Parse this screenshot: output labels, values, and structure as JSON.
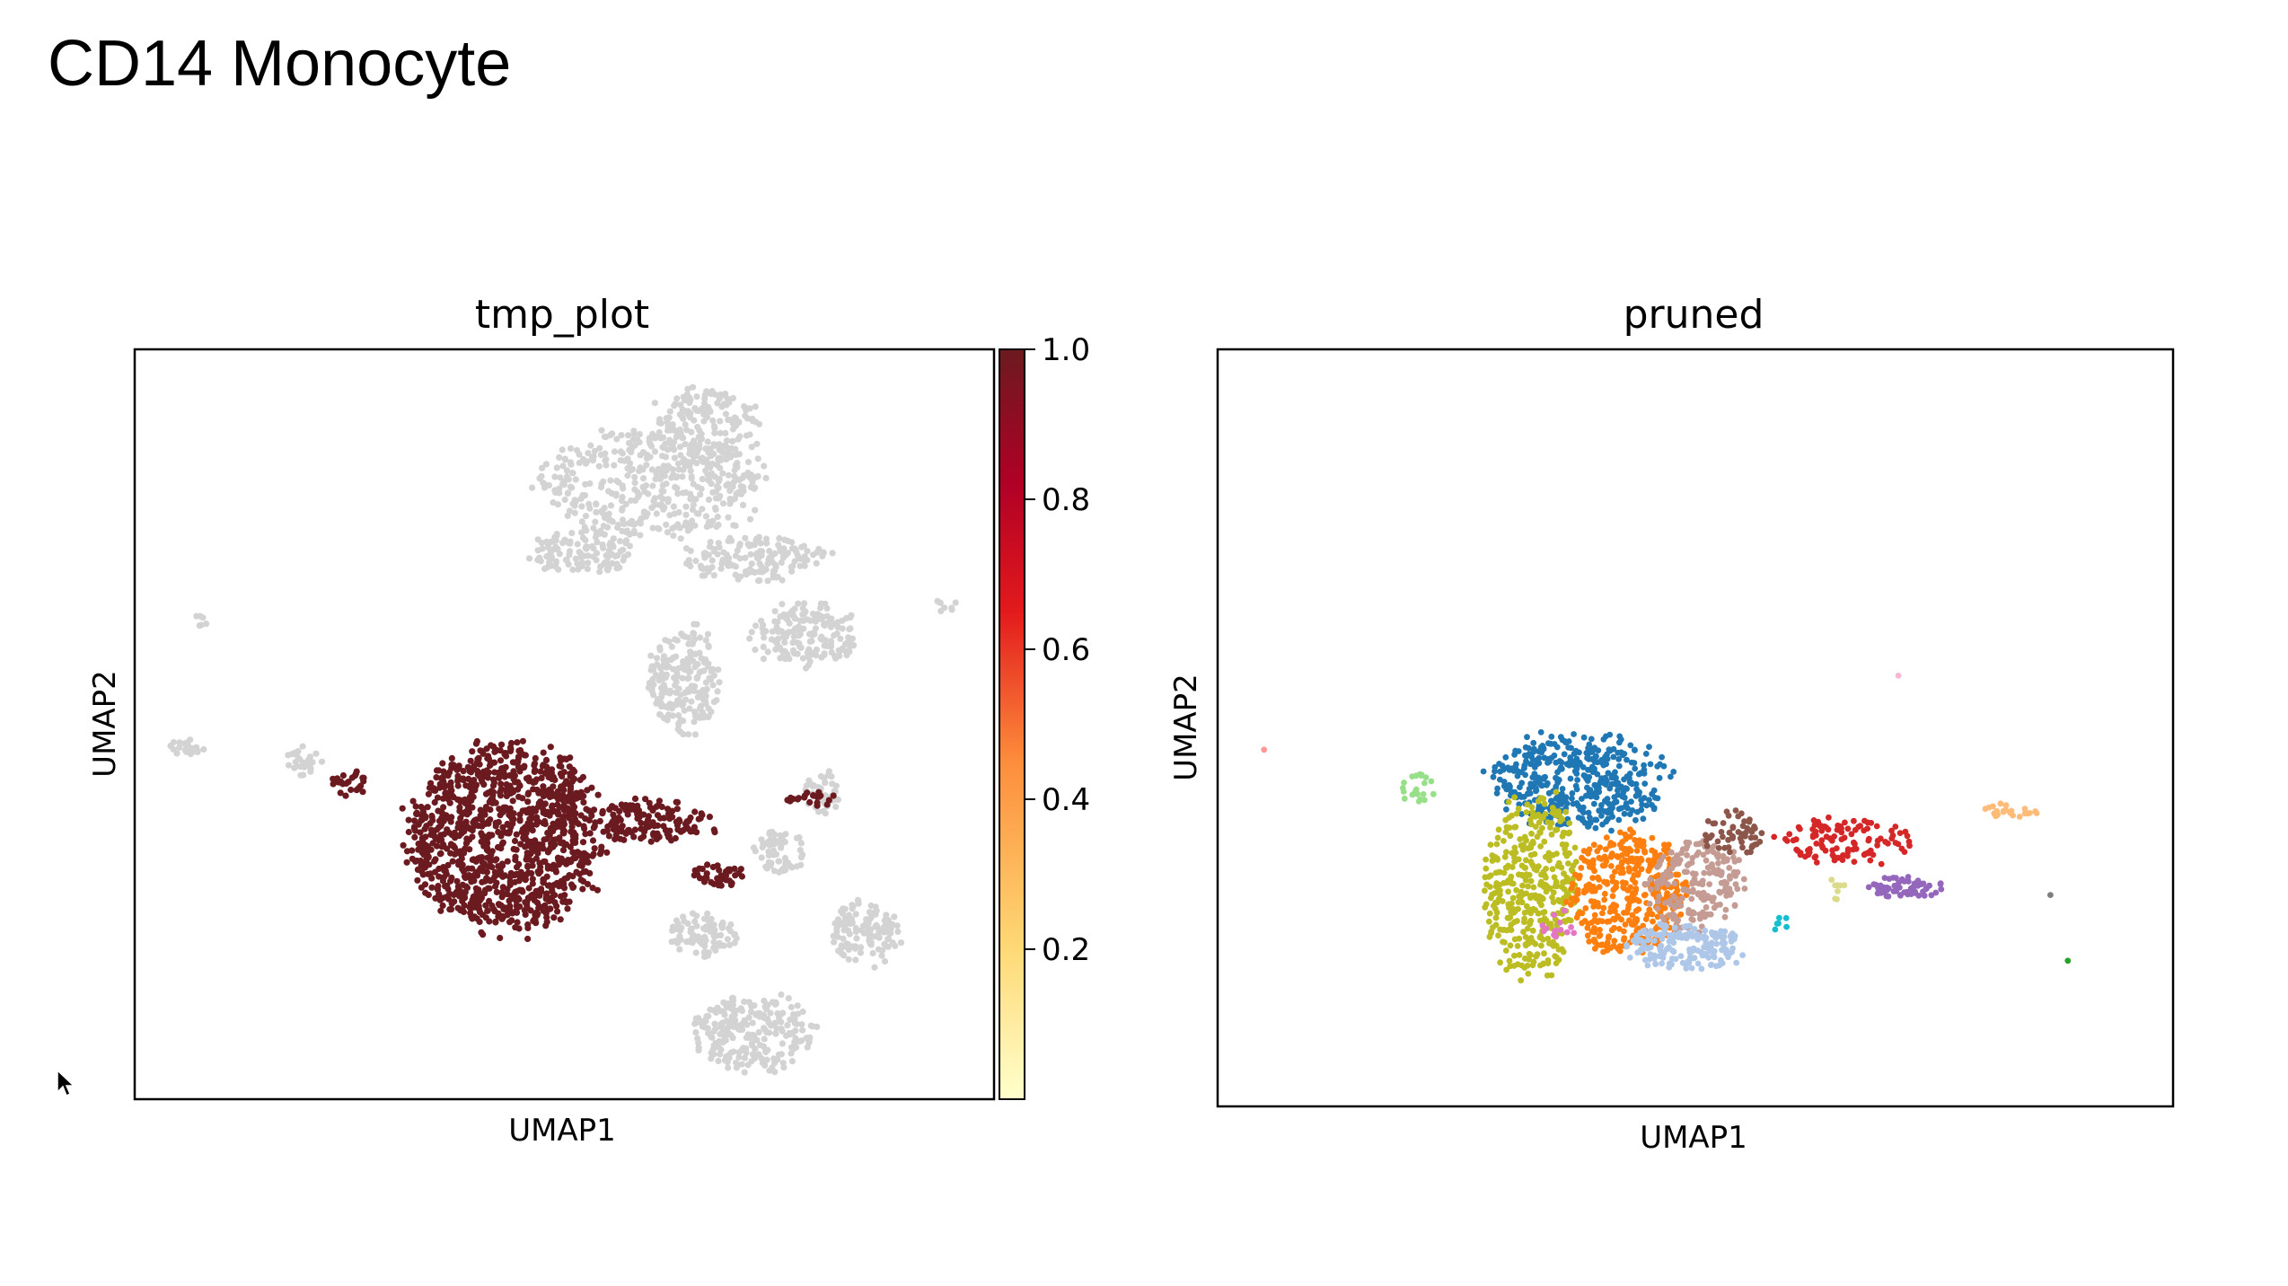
{
  "slide": {
    "title": "CD14 Monocyte"
  },
  "chart_data": [
    {
      "type": "scatter",
      "title": "tmp_plot",
      "xlabel": "UMAP1",
      "ylabel": "UMAP2",
      "xlim": [
        0,
        100
      ],
      "ylim": [
        0,
        100
      ],
      "colorbar": {
        "ticks": [
          0.2,
          0.4,
          0.6,
          0.8,
          1.0
        ],
        "tick_labels": [
          "0.2",
          "0.4",
          "0.6",
          "0.8",
          "1.0"
        ],
        "range": [
          0,
          1
        ],
        "colormap": [
          "#ffffcc",
          "#fed976",
          "#fd8d3c",
          "#e31a1c",
          "#b10026",
          "#6b1a1f"
        ]
      },
      "null_color": "#d3d3d3",
      "regions": [
        {
          "cx": 67,
          "cy": 90,
          "rx": 6,
          "ry": 5,
          "n": 160,
          "value": null
        },
        {
          "cx": 60,
          "cy": 82,
          "rx": 13,
          "ry": 7,
          "n": 420,
          "value": null
        },
        {
          "cx": 52,
          "cy": 73,
          "rx": 6,
          "ry": 3,
          "n": 120,
          "value": null
        },
        {
          "cx": 72,
          "cy": 72,
          "rx": 8,
          "ry": 3,
          "n": 150,
          "value": null
        },
        {
          "cx": 78,
          "cy": 62,
          "rx": 6,
          "ry": 4,
          "n": 170,
          "value": null
        },
        {
          "cx": 64,
          "cy": 56,
          "rx": 4,
          "ry": 7,
          "n": 200,
          "value": null
        },
        {
          "cx": 80,
          "cy": 41,
          "rx": 2,
          "ry": 3,
          "n": 40,
          "value": null
        },
        {
          "cx": 75,
          "cy": 33,
          "rx": 3,
          "ry": 3,
          "n": 60,
          "value": null
        },
        {
          "cx": 85,
          "cy": 22,
          "rx": 4,
          "ry": 4,
          "n": 120,
          "value": null
        },
        {
          "cx": 66,
          "cy": 22,
          "rx": 4,
          "ry": 3,
          "n": 90,
          "value": null
        },
        {
          "cx": 72,
          "cy": 9,
          "rx": 7,
          "ry": 5,
          "n": 240,
          "value": null
        },
        {
          "cx": 6,
          "cy": 47,
          "rx": 2,
          "ry": 1,
          "n": 25,
          "value": null
        },
        {
          "cx": 20,
          "cy": 45,
          "rx": 2,
          "ry": 2,
          "n": 25,
          "value": null
        },
        {
          "cx": 8,
          "cy": 64,
          "rx": 1,
          "ry": 1,
          "n": 6,
          "value": null
        },
        {
          "cx": 94,
          "cy": 66,
          "rx": 2,
          "ry": 1,
          "n": 8,
          "value": null
        },
        {
          "cx": 43,
          "cy": 35,
          "rx": 11,
          "ry": 12,
          "n": 1100,
          "value": 1.0
        },
        {
          "cx": 60,
          "cy": 37,
          "rx": 7,
          "ry": 3,
          "n": 140,
          "value": 1.0
        },
        {
          "cx": 68,
          "cy": 30,
          "rx": 3,
          "ry": 1.5,
          "n": 40,
          "value": 1.0
        },
        {
          "cx": 79,
          "cy": 40,
          "rx": 3,
          "ry": 1,
          "n": 22,
          "value": 1.0
        },
        {
          "cx": 25,
          "cy": 42,
          "rx": 2,
          "ry": 2,
          "n": 24,
          "value": 1.0
        }
      ]
    },
    {
      "type": "scatter",
      "title": "pruned",
      "xlabel": "UMAP1",
      "ylabel": "UMAP2",
      "xlim": [
        0,
        100
      ],
      "ylim": [
        0,
        100
      ],
      "regions": [
        {
          "cx": 38,
          "cy": 43,
          "rx": 9,
          "ry": 6,
          "n": 420,
          "color": "#1f77b4"
        },
        {
          "cx": 33,
          "cy": 29,
          "rx": 5,
          "ry": 12,
          "n": 380,
          "color": "#bcbd22"
        },
        {
          "cx": 43,
          "cy": 28,
          "rx": 6,
          "ry": 8,
          "n": 380,
          "color": "#ff7f0e"
        },
        {
          "cx": 50,
          "cy": 29,
          "rx": 5,
          "ry": 6,
          "n": 200,
          "color": "#c49c94"
        },
        {
          "cx": 49,
          "cy": 21,
          "rx": 6,
          "ry": 3,
          "n": 170,
          "color": "#aec7e8"
        },
        {
          "cx": 66,
          "cy": 35,
          "rx": 7,
          "ry": 3,
          "n": 110,
          "color": "#d62728"
        },
        {
          "cx": 72,
          "cy": 29,
          "rx": 4,
          "ry": 1.5,
          "n": 60,
          "color": "#9467bd"
        },
        {
          "cx": 54,
          "cy": 36,
          "rx": 3,
          "ry": 3,
          "n": 55,
          "color": "#8c564b"
        },
        {
          "cx": 21,
          "cy": 42,
          "rx": 2,
          "ry": 2,
          "n": 22,
          "color": "#98df8a"
        },
        {
          "cx": 83,
          "cy": 39,
          "rx": 3,
          "ry": 1,
          "n": 24,
          "color": "#ffbb78"
        },
        {
          "cx": 36,
          "cy": 24,
          "rx": 2,
          "ry": 2,
          "n": 14,
          "color": "#e377c2"
        },
        {
          "cx": 65,
          "cy": 29,
          "rx": 1,
          "ry": 2,
          "n": 8,
          "color": "#dbdb8d"
        },
        {
          "cx": 59,
          "cy": 24,
          "rx": 1,
          "ry": 1,
          "n": 6,
          "color": "#17becf"
        },
        {
          "cx": 5,
          "cy": 47,
          "rx": 0.3,
          "ry": 0.3,
          "n": 1,
          "color": "#ff9896"
        },
        {
          "cx": 71,
          "cy": 57,
          "rx": 0.3,
          "ry": 0.3,
          "n": 1,
          "color": "#f7b6d2"
        },
        {
          "cx": 89,
          "cy": 19,
          "rx": 0.3,
          "ry": 0.3,
          "n": 1,
          "color": "#2ca02c"
        },
        {
          "cx": 87,
          "cy": 28,
          "rx": 0.3,
          "ry": 0.3,
          "n": 1,
          "color": "#7f7f7f"
        }
      ]
    }
  ]
}
